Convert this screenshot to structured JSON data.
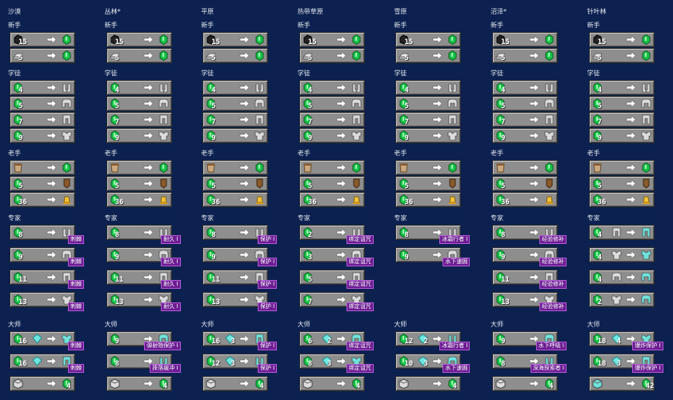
{
  "columns": [
    {
      "name": "沙漠",
      "levels": [
        {
          "label": "新手",
          "trades": [
            {
              "cost": 15
            },
            {
              "cost": 5
            }
          ]
        },
        {
          "label": "学徒",
          "trades": [
            {
              "cost": 4
            },
            {
              "cost": 5
            },
            {
              "cost": 7
            },
            {
              "cost": 9
            }
          ]
        },
        {
          "label": "老手",
          "trades": [
            {
              "cost": null
            },
            {
              "cost": 5
            },
            {
              "cost": 36
            }
          ]
        },
        {
          "label": "专家",
          "trades": [
            {
              "cost": 8,
              "enchant": "刺棘"
            },
            {
              "cost": 9,
              "enchant": "刺棘"
            },
            {
              "cost": 11,
              "enchant": "刺棘"
            },
            {
              "cost": 13,
              "enchant": "刺棘"
            }
          ]
        },
        {
          "label": "大师",
          "trades": [
            {
              "cost": 16,
              "enchant": "刺棘"
            },
            {
              "cost": 16,
              "enchant": "刺棘"
            },
            {
              "result": 4
            }
          ]
        }
      ]
    },
    {
      "name": "丛林*",
      "levels": [
        {
          "label": "新手",
          "trades": [
            {
              "cost": 15
            },
            {
              "cost": 5
            }
          ]
        },
        {
          "label": "学徒",
          "trades": [
            {
              "cost": 4
            },
            {
              "cost": 5
            },
            {
              "cost": 7
            },
            {
              "cost": 9
            }
          ]
        },
        {
          "label": "老手",
          "trades": [
            {
              "cost": null
            },
            {
              "cost": 5
            },
            {
              "cost": 36
            }
          ]
        },
        {
          "label": "专家",
          "trades": [
            {
              "cost": 8,
              "enchant": "耐久 I"
            },
            {
              "cost": 9,
              "enchant": "耐久 I"
            },
            {
              "cost": 11,
              "enchant": "耐久 I"
            },
            {
              "cost": 13,
              "enchant": "耐久 I"
            }
          ]
        },
        {
          "label": "大师",
          "trades": [
            {
              "cost": 9,
              "enchant": "弹射物保护 I"
            },
            {
              "cost": 8,
              "enchant": "摔落缓冲 I"
            },
            {
              "result": 4
            }
          ]
        }
      ]
    },
    {
      "name": "平原",
      "levels": [
        {
          "label": "新手",
          "trades": [
            {
              "cost": 15
            },
            {
              "cost": 5
            }
          ]
        },
        {
          "label": "学徒",
          "trades": [
            {
              "cost": 4
            },
            {
              "cost": 5
            },
            {
              "cost": 7
            },
            {
              "cost": 9
            }
          ]
        },
        {
          "label": "老手",
          "trades": [
            {
              "cost": null
            },
            {
              "cost": 5
            },
            {
              "cost": 36
            }
          ]
        },
        {
          "label": "专家",
          "trades": [
            {
              "cost": 8,
              "enchant": "保护 I"
            },
            {
              "cost": 9,
              "enchant": "保护 I"
            },
            {
              "cost": 11,
              "enchant": "保护 I"
            },
            {
              "cost": 13,
              "enchant": "保护 I"
            }
          ]
        },
        {
          "label": "大师",
          "trades": [
            {
              "cost": 16,
              "cost2": 3,
              "enchant": "保护 I"
            },
            {
              "cost": 12,
              "cost2": 3,
              "enchant": "保护 I"
            },
            {
              "result": 4
            }
          ]
        }
      ]
    },
    {
      "name": "热带草原",
      "levels": [
        {
          "label": "新手",
          "trades": [
            {
              "cost": 15
            },
            {
              "cost": 5
            }
          ]
        },
        {
          "label": "学徒",
          "trades": [
            {
              "cost": 4
            },
            {
              "cost": 5
            },
            {
              "cost": 7
            },
            {
              "cost": 9
            }
          ]
        },
        {
          "label": "老手",
          "trades": [
            {
              "cost": null
            },
            {
              "cost": 5
            },
            {
              "cost": 36
            }
          ]
        },
        {
          "label": "专家",
          "trades": [
            {
              "cost": 2,
              "enchant": "绑定诅咒"
            },
            {
              "cost": 3,
              "enchant": "绑定诅咒"
            },
            {
              "cost": 5,
              "enchant": "绑定诅咒"
            },
            {
              "cost": 7,
              "enchant": "绑定诅咒"
            }
          ]
        },
        {
          "label": "大师",
          "trades": [
            {
              "cost": 6,
              "cost2": 2,
              "enchant": "绑定诅咒"
            },
            {
              "cost": 8,
              "cost2": 3,
              "enchant": "绑定诅咒"
            },
            {
              "result": 4
            }
          ]
        }
      ]
    },
    {
      "name": "雪原",
      "levels": [
        {
          "label": "新手",
          "trades": [
            {
              "cost": 15
            },
            {
              "cost": 5
            }
          ]
        },
        {
          "label": "学徒",
          "trades": [
            {
              "cost": 4
            },
            {
              "cost": 5
            },
            {
              "cost": 7
            },
            {
              "cost": 9
            }
          ]
        },
        {
          "label": "老手",
          "trades": [
            {
              "cost": null
            },
            {
              "cost": 5
            },
            {
              "cost": 36
            }
          ]
        },
        {
          "label": "专家",
          "trades": [
            {
              "cost": 8,
              "enchant": "冰霜行者 I"
            },
            {
              "cost": 9,
              "enchant": "水下速掘"
            }
          ]
        },
        {
          "label": "大师",
          "trades": [
            {
              "cost": 12,
              "cost2": 2,
              "enchant": "冰霜行者 I"
            },
            {
              "cost": 10,
              "cost2": 3,
              "enchant": "水下速掘"
            },
            {
              "result": 4
            }
          ]
        }
      ]
    },
    {
      "name": "沼泽*",
      "levels": [
        {
          "label": "新手",
          "trades": [
            {
              "cost": 15
            },
            {
              "cost": 5
            }
          ]
        },
        {
          "label": "学徒",
          "trades": [
            {
              "cost": 4
            },
            {
              "cost": 5
            },
            {
              "cost": 7
            },
            {
              "cost": 9
            }
          ]
        },
        {
          "label": "老手",
          "trades": [
            {
              "cost": null
            },
            {
              "cost": 5
            },
            {
              "cost": 36
            }
          ]
        },
        {
          "label": "专家",
          "trades": [
            {
              "cost": 8,
              "enchant": "经验修补"
            },
            {
              "cost": 9,
              "enchant": "经验修补"
            },
            {
              "cost": 11,
              "enchant": "经验修补"
            },
            {
              "cost": 13,
              "enchant": "经验修补"
            }
          ]
        },
        {
          "label": "大师",
          "trades": [
            {
              "cost": 9,
              "enchant": "水下呼吸 I"
            },
            {
              "cost": 8,
              "enchant": "深海探索者 I"
            },
            {
              "result": 4
            }
          ]
        }
      ]
    },
    {
      "name": "针叶林",
      "levels": [
        {
          "label": "新手",
          "trades": [
            {
              "cost": 15
            },
            {
              "cost": 5
            }
          ]
        },
        {
          "label": "学徒",
          "trades": [
            {
              "cost": 4
            },
            {
              "cost": 5
            },
            {
              "cost": 7
            },
            {
              "cost": 9
            }
          ]
        },
        {
          "label": "老手",
          "trades": [
            {
              "cost": null
            },
            {
              "cost": 5
            },
            {
              "cost": 36
            }
          ]
        },
        {
          "label": "专家",
          "trades": [
            {
              "cost": 4
            },
            {
              "cost": 4
            },
            {
              "cost": 4
            },
            {
              "cost": 2
            }
          ]
        },
        {
          "label": "大师",
          "trades": [
            {
              "cost": 18,
              "cost2": 4,
              "enchant": "爆炸保护 I"
            },
            {
              "cost": 18,
              "cost2": 3,
              "enchant": "爆炸保护 I"
            },
            {
              "result": 42
            }
          ]
        }
      ]
    }
  ]
}
